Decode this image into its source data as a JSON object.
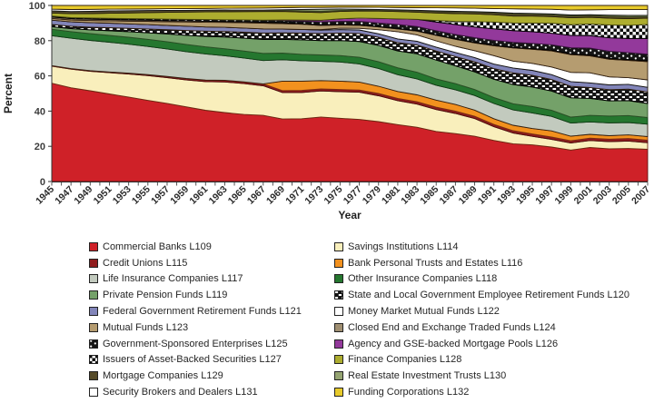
{
  "chart_data": {
    "type": "area",
    "stacked": true,
    "normalized_to_100_percent": true,
    "title": "",
    "xlabel": "Year",
    "ylabel": "Percent",
    "ylim": [
      0,
      100
    ],
    "y_ticks": [
      0,
      20,
      40,
      60,
      80,
      100
    ],
    "x_minor_tick_every_years": 1,
    "x_label_every_years": 2,
    "legend_position": "bottom-two-columns",
    "x_years": [
      1945,
      1947,
      1949,
      1951,
      1953,
      1955,
      1957,
      1959,
      1961,
      1963,
      1965,
      1967,
      1969,
      1971,
      1973,
      1975,
      1977,
      1979,
      1981,
      1983,
      1985,
      1987,
      1989,
      1991,
      1993,
      1995,
      1997,
      1999,
      2001,
      2003,
      2005,
      2007
    ],
    "series": [
      {
        "key": "L109",
        "name": "Commercial Banks L109",
        "color": "#cf2128",
        "stroke": "#5e1312",
        "pattern": null,
        "values": [
          57.5,
          55.5,
          53.5,
          51.5,
          49.5,
          47.5,
          45.5,
          43,
          41,
          39.5,
          38,
          37,
          36.5,
          37,
          38.5,
          38,
          37.5,
          37,
          35.5,
          34,
          32,
          31,
          29.5,
          27,
          24.5,
          23.5,
          22.5,
          20.5,
          22,
          20.5,
          20,
          19.5
        ]
      },
      {
        "key": "L114",
        "name": "Savings Institutions L114",
        "color": "#f9efbc",
        "stroke": "#6e2a12",
        "pattern": null,
        "values": [
          10,
          11,
          11.5,
          12.5,
          13.5,
          14.5,
          15,
          15.5,
          16.5,
          17.5,
          17.5,
          16.5,
          15.5,
          15.5,
          15.5,
          16,
          16.5,
          16,
          15,
          14.5,
          14,
          13,
          11.5,
          9,
          7,
          5.5,
          5,
          4.5,
          4.5,
          4.5,
          4.5,
          4
        ]
      },
      {
        "key": "L115",
        "name": "Credit Unions L115",
        "color": "#901c1e",
        "stroke": "#4a0d0e",
        "pattern": null,
        "values": [
          0.3,
          0.35,
          0.4,
          0.45,
          0.5,
          0.6,
          0.7,
          0.8,
          0.9,
          1,
          1,
          1.1,
          1.1,
          1.2,
          1.2,
          1.3,
          1.3,
          1.4,
          1.4,
          1.5,
          1.5,
          1.5,
          1.5,
          1.5,
          1.5,
          1.5,
          1.5,
          1.5,
          1.5,
          1.5,
          1.5,
          1.5
        ]
      },
      {
        "key": "L116",
        "name": "Bank Personal Trusts and Estates L116",
        "color": "#f2911e",
        "stroke": "#7a3013",
        "pattern": null,
        "values": [
          0,
          0,
          0,
          0,
          0,
          0,
          0,
          0,
          0,
          0,
          0,
          0,
          5.5,
          5.5,
          5,
          5,
          4.8,
          4.5,
          4.3,
          4.3,
          4.5,
          4.3,
          4,
          3.8,
          3.5,
          3.5,
          4,
          3,
          2.5,
          2.2,
          2.2,
          2.2
        ]
      },
      {
        "key": "L117",
        "name": "Life Insurance Companies L117",
        "color": "#c2cabe",
        "stroke": "#33200f",
        "pattern": null,
        "values": [
          17.5,
          18,
          17.8,
          17.5,
          17,
          16.5,
          16,
          15.5,
          15,
          14,
          13.5,
          13,
          12.5,
          12,
          11.5,
          11.5,
          11,
          11,
          10.5,
          10,
          9.5,
          9.5,
          9.5,
          10,
          10,
          10,
          9.5,
          8.5,
          8,
          8,
          7.5,
          7.5
        ]
      },
      {
        "key": "L118",
        "name": "Other Insurance Companies L118",
        "color": "#25772f",
        "stroke": "#0d3d15",
        "pattern": null,
        "values": [
          3.8,
          3.9,
          4,
          4,
          4.1,
          4.2,
          4.2,
          4.2,
          4.1,
          4,
          4,
          4,
          3.9,
          3.8,
          3.8,
          3.9,
          4,
          4.2,
          4.3,
          4.2,
          4.1,
          4,
          3.9,
          3.9,
          4,
          4.1,
          4,
          3.9,
          4.2,
          4.3,
          4.2,
          4
        ]
      },
      {
        "key": "L119",
        "name": "Private Pension Funds L119",
        "color": "#74a169",
        "stroke": "#2c4f26",
        "pattern": null,
        "values": [
          1.5,
          1.8,
          2.2,
          2.7,
          3.2,
          3.8,
          4.5,
          5.2,
          6,
          6.7,
          7.3,
          7.8,
          8,
          8.5,
          8.5,
          9,
          9.5,
          10,
          10.5,
          11.5,
          12,
          11.5,
          11.5,
          12,
          12.5,
          12.5,
          12.5,
          12.5,
          11,
          9.5,
          9,
          8.5
        ]
      },
      {
        "key": "L120",
        "name": "State and Local Government Employee Retirement Funds L120",
        "color": "#141414",
        "stroke": "#000000",
        "pattern": "dashbrick",
        "values": [
          1.3,
          1.4,
          1.6,
          1.8,
          2,
          2.2,
          2.5,
          2.8,
          3,
          3.2,
          3.4,
          3.6,
          3.8,
          4,
          4.2,
          4.5,
          4.8,
          5,
          5.2,
          5.5,
          5.8,
          6,
          6.5,
          7,
          7.5,
          7.5,
          7.5,
          7.5,
          7,
          7,
          7,
          7
        ]
      },
      {
        "key": "L121",
        "name": "Federal Government Retirement Funds L121",
        "color": "#8285b9",
        "stroke": "#33200f",
        "pattern": null,
        "values": [
          2.5,
          2.6,
          2.7,
          2.7,
          2.6,
          2.6,
          2.5,
          2.5,
          2.4,
          2.4,
          2.3,
          2.3,
          2.2,
          2.2,
          2.1,
          2.1,
          2.2,
          2.2,
          2.3,
          2.4,
          2.5,
          2.6,
          2.8,
          3,
          3.2,
          3.2,
          3.2,
          3.1,
          3,
          3,
          2.9,
          2.8
        ]
      },
      {
        "key": "L122",
        "name": "Money Market Mutual Funds L122",
        "color": "#ffffff",
        "stroke": "#111111",
        "pattern": null,
        "values": [
          0,
          0,
          0,
          0,
          0,
          0,
          0,
          0,
          0,
          0,
          0,
          0,
          0,
          0,
          0.3,
          0.8,
          1,
          2.5,
          4.5,
          4,
          4,
          4,
          4.5,
          5.5,
          4.5,
          4.5,
          5,
          6,
          6.5,
          5,
          4,
          4.5
        ]
      },
      {
        "key": "L123",
        "name": "Mutual Funds L123",
        "color": "#b59c70",
        "stroke": "#33200f",
        "pattern": null,
        "values": [
          1,
          1.1,
          1.2,
          1.4,
          1.6,
          1.9,
          2.1,
          2.4,
          2.7,
          2.8,
          3,
          3.2,
          3.2,
          3,
          2.5,
          2,
          1.8,
          1.7,
          1.7,
          2.3,
          3.5,
          4.5,
          5,
          6.5,
          8.5,
          9,
          10.5,
          11.5,
          11,
          11,
          10.5,
          11
        ]
      },
      {
        "key": "L124",
        "name": "Closed End and Exchange Traded Funds L124",
        "color": "#a08f72",
        "stroke": "#33200f",
        "pattern": null,
        "values": [
          0.8,
          0.8,
          0.8,
          0.7,
          0.7,
          0.7,
          0.6,
          0.6,
          0.6,
          0.5,
          0.5,
          0.5,
          0.5,
          0.4,
          0.4,
          0.4,
          0.4,
          0.3,
          0.3,
          0.3,
          0.3,
          0.3,
          0.4,
          0.4,
          0.4,
          0.4,
          0.4,
          0.5,
          0.5,
          0.5,
          0.5,
          0.5
        ]
      },
      {
        "key": "L125",
        "name": "Government-Sponsored Enterprises L125",
        "color": "#151515",
        "stroke": "#000000",
        "pattern": "dots",
        "values": [
          0.6,
          0.6,
          0.7,
          0.7,
          0.8,
          0.8,
          0.9,
          0.9,
          1,
          1,
          1.1,
          1.2,
          1.4,
          1.5,
          1.7,
          1.8,
          2,
          2.2,
          2.5,
          2.6,
          2.7,
          2.8,
          3,
          3.2,
          3.3,
          3.4,
          3.6,
          4,
          4.5,
          4.5,
          4.2,
          4
        ]
      },
      {
        "key": "L126",
        "name": "Agency and GSE-backed Mortgage Pools L126",
        "color": "#93399b",
        "stroke": "#3c1340",
        "pattern": null,
        "values": [
          0,
          0,
          0,
          0,
          0,
          0,
          0,
          0,
          0,
          0,
          0,
          0,
          0.3,
          0.6,
          1,
          1.5,
          2,
          2.8,
          3.5,
          4.5,
          5.5,
          6.5,
          7,
          7.5,
          7.5,
          7.5,
          7.5,
          8,
          8,
          8.5,
          8.5,
          9.5
        ]
      },
      {
        "key": "L127",
        "name": "Issuers of Asset-Backed Securities L127",
        "color": "#ffffff",
        "stroke": "#000000",
        "pattern": "checker",
        "values": [
          0,
          0,
          0,
          0,
          0,
          0,
          0,
          0,
          0,
          0,
          0,
          0,
          0,
          0,
          0,
          0,
          0,
          0,
          0,
          0,
          1,
          2,
          3.5,
          4.5,
          5,
          5.5,
          6.5,
          7,
          7.5,
          8,
          8,
          8.5
        ]
      },
      {
        "key": "L128",
        "name": "Finance Companies L128",
        "color": "#adad2f",
        "stroke": "#4a4a10",
        "pattern": null,
        "values": [
          1.8,
          2.3,
          2.6,
          3,
          3.3,
          3.6,
          4,
          4.2,
          4.4,
          4.6,
          4.7,
          4.8,
          4.9,
          4.7,
          4.6,
          4.4,
          4.3,
          4.5,
          4.6,
          4.5,
          4.8,
          5,
          5,
          4.8,
          4.5,
          4.5,
          4.3,
          4.5,
          4.3,
          4.2,
          4,
          3.8
        ]
      },
      {
        "key": "L129",
        "name": "Mortgage Companies L129",
        "color": "#554a28",
        "stroke": "#241d0c",
        "pattern": null,
        "values": [
          1.2,
          1.3,
          1.4,
          1.4,
          1.3,
          1.2,
          1.1,
          1,
          1,
          1,
          0.9,
          0.8,
          0.7,
          0.7,
          0.7,
          0.6,
          0.6,
          0.7,
          0.8,
          0.9,
          1,
          1.2,
          1.2,
          1.3,
          1.5,
          1.2,
          1.2,
          1.3,
          1.2,
          1.3,
          1.2,
          1
        ]
      },
      {
        "key": "L130",
        "name": "Real Estate Investment Trusts L130",
        "color": "#95a472",
        "stroke": "#3d4a24",
        "pattern": null,
        "values": [
          0,
          0,
          0,
          0,
          0,
          0,
          0,
          0,
          0,
          0,
          0,
          0,
          0.3,
          0.8,
          1.2,
          0.8,
          0.4,
          0.3,
          0.3,
          0.3,
          0.3,
          0.3,
          0.3,
          0.3,
          0.4,
          0.5,
          0.6,
          0.5,
          0.5,
          0.6,
          0.8,
          0.7
        ]
      },
      {
        "key": "L131",
        "name": "Security Brokers and Dealers L131",
        "color": "#ffffff",
        "stroke": "#111111",
        "pattern": null,
        "values": [
          1,
          1.2,
          1.1,
          1,
          1,
          1,
          1,
          1,
          1,
          1,
          1.1,
          1.2,
          1.2,
          1.2,
          1.1,
          1.1,
          1.2,
          1.3,
          1.4,
          1.6,
          2,
          2.2,
          2.2,
          2.5,
          2.8,
          2.8,
          3,
          3.2,
          3.2,
          3.5,
          3.5,
          3.5
        ]
      },
      {
        "key": "L132",
        "name": "Funding Corporations L132",
        "color": "#e7ca2b",
        "stroke": "#33200f",
        "pattern": null,
        "values": [
          2.2,
          2.4,
          2.3,
          2.2,
          2.1,
          2,
          1.9,
          1.8,
          1.7,
          1.6,
          1.5,
          1.4,
          1.3,
          1.2,
          1.2,
          1.1,
          1.1,
          1.2,
          1.3,
          1.4,
          1.5,
          1.6,
          1.8,
          2,
          2.2,
          2.3,
          2.5,
          3,
          2.8,
          2.6,
          2.5,
          2.5
        ]
      }
    ]
  }
}
